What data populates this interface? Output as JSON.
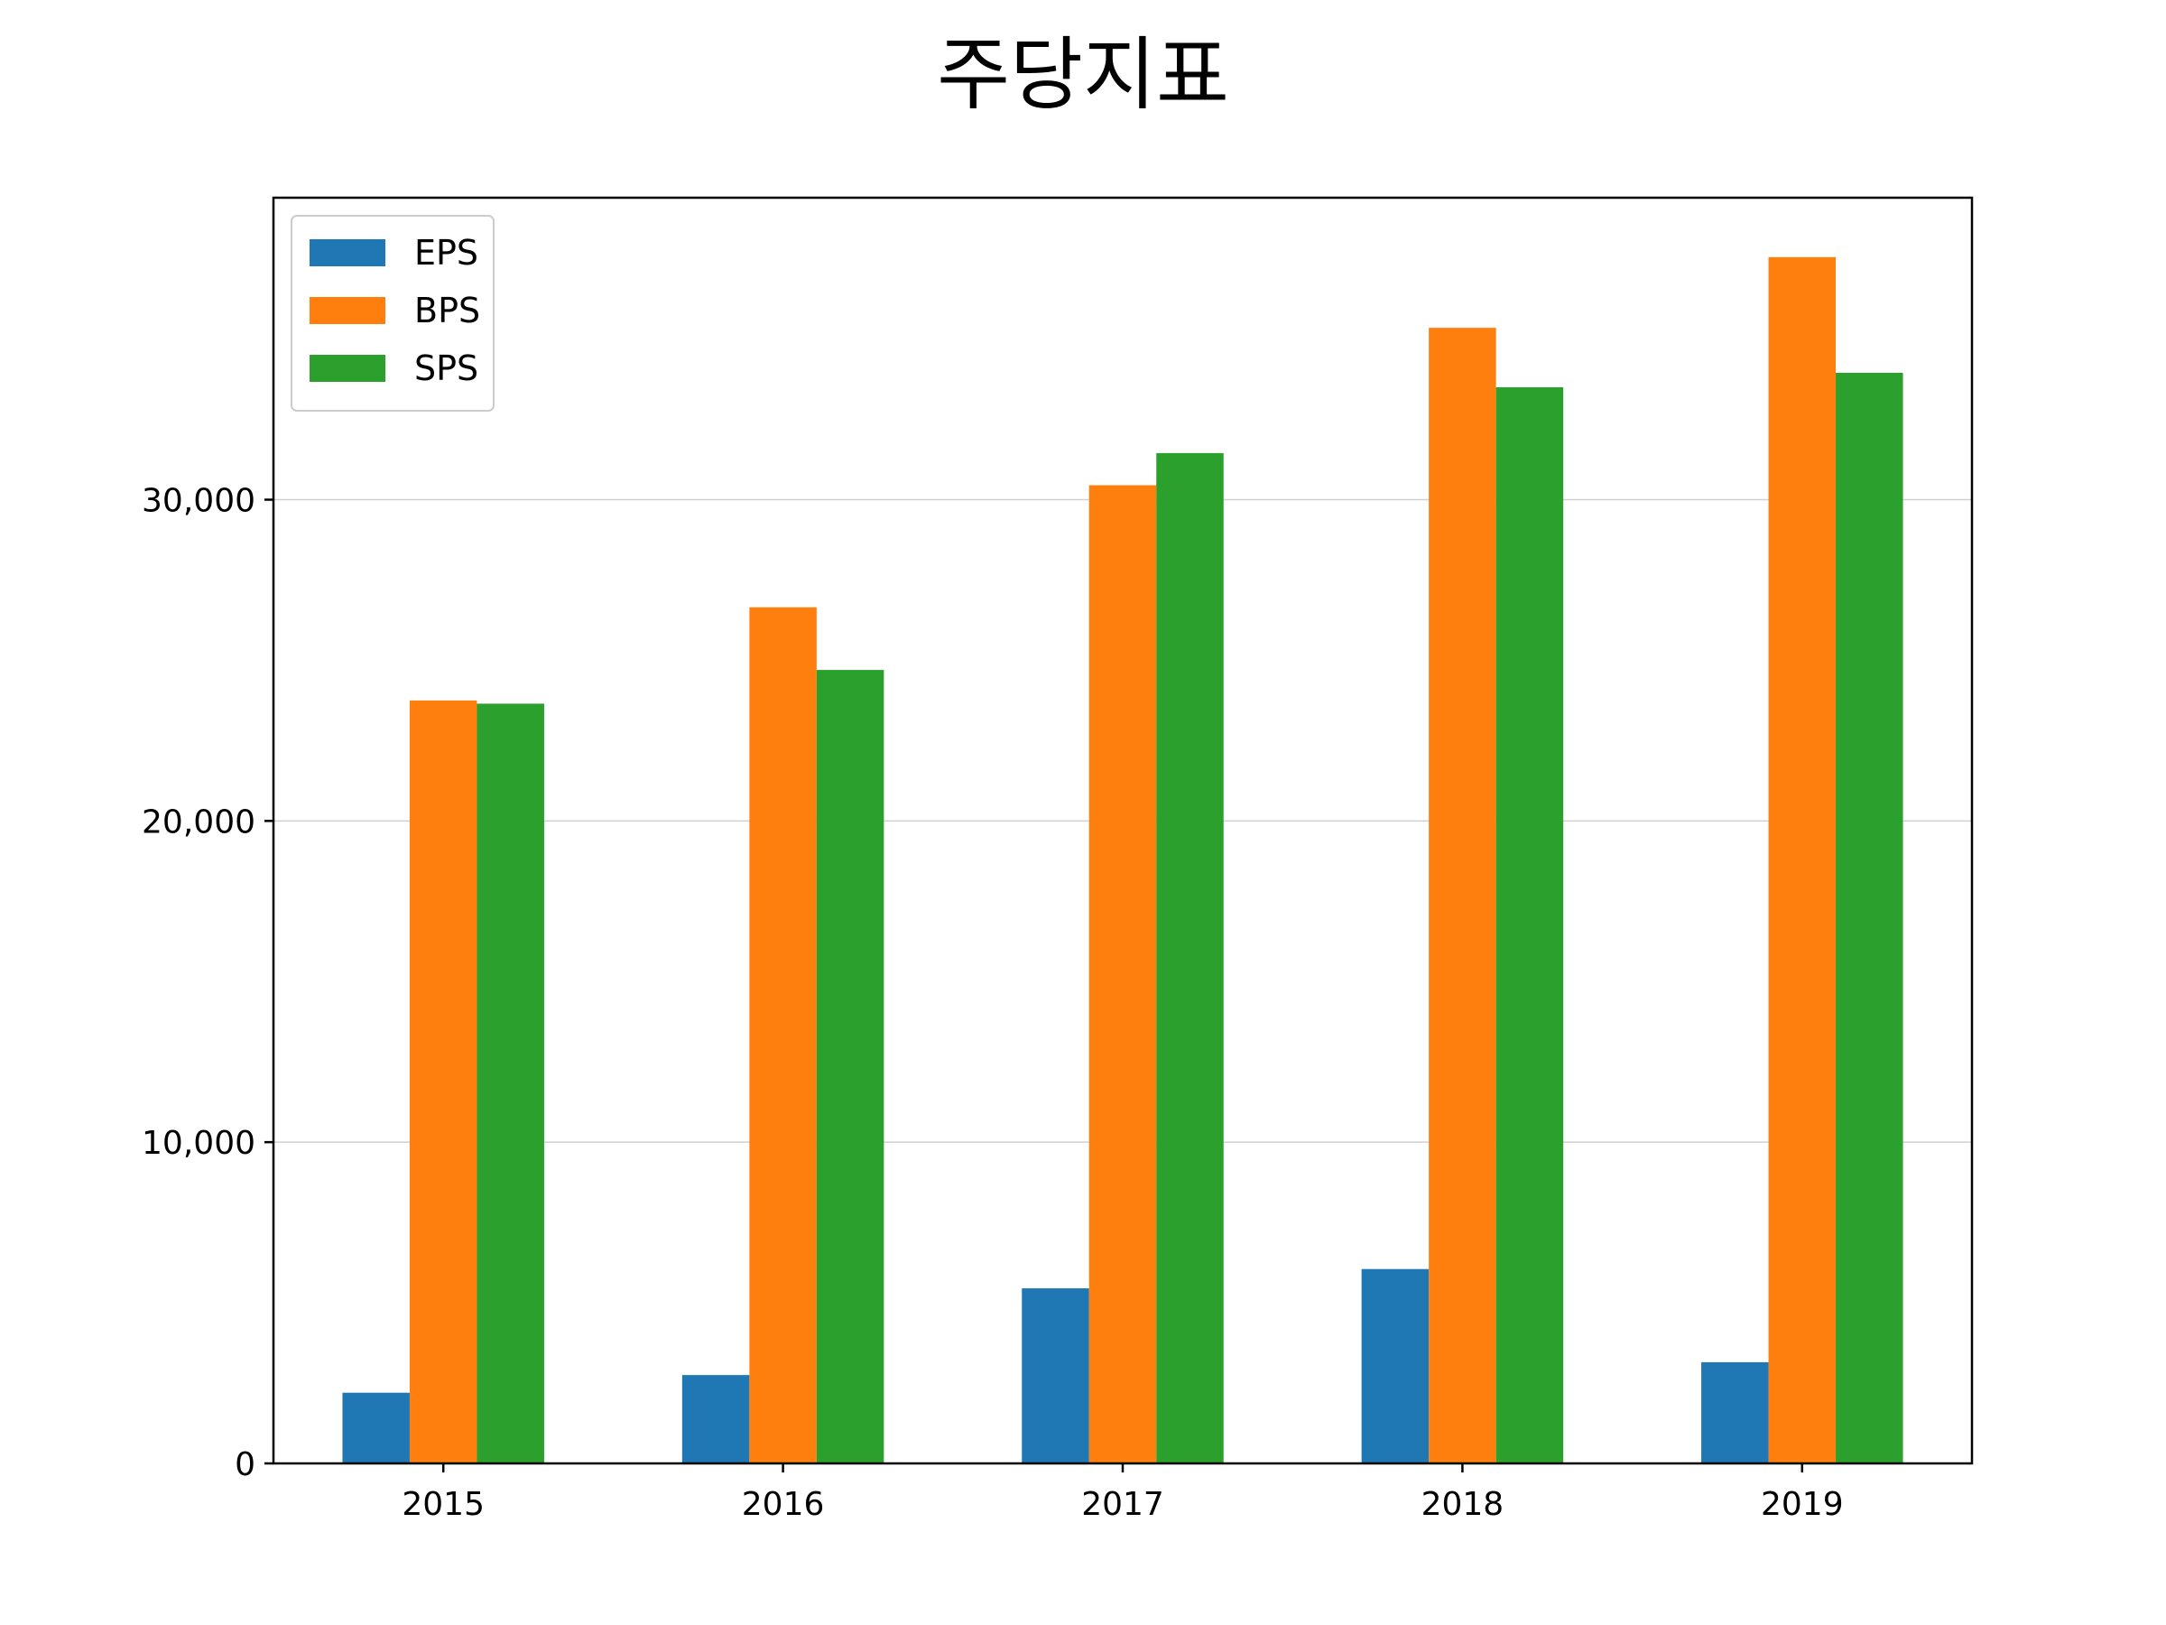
{
  "chart_data": {
    "type": "bar",
    "title": "주당지표",
    "xlabel": "",
    "ylabel": "",
    "categories": [
      "2015",
      "2016",
      "2017",
      "2018",
      "2019"
    ],
    "series": [
      {
        "name": "EPS",
        "color": "#1f77b4",
        "values": [
          2200,
          2750,
          5450,
          6050,
          3150
        ]
      },
      {
        "name": "BPS",
        "color": "#ff7f0e",
        "values": [
          23750,
          26650,
          30450,
          35350,
          37550
        ]
      },
      {
        "name": "SPS",
        "color": "#2ca02c",
        "values": [
          23650,
          24700,
          31450,
          33500,
          33950
        ]
      }
    ],
    "ylim": [
      0,
      39400
    ],
    "yticks": [
      0,
      10000,
      20000,
      30000
    ],
    "ytick_labels": [
      "0",
      "10,000",
      "20,000",
      "30,000"
    ],
    "grid": "y",
    "legend_position": "top-left"
  }
}
